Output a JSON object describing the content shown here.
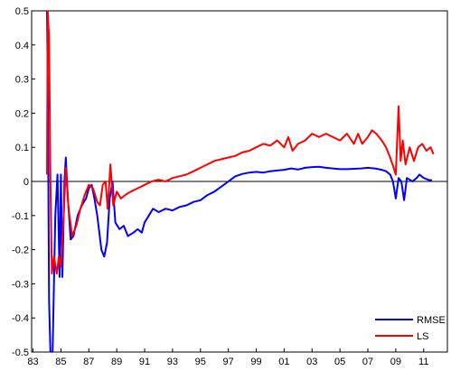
{
  "chart_data": {
    "type": "line",
    "title": "",
    "xlabel": "",
    "ylabel": "",
    "xlim": [
      1982.9,
      2012.7
    ],
    "ylim": [
      -0.5,
      0.5
    ],
    "x_ticks": [
      1983,
      1985,
      1987,
      1989,
      1991,
      1993,
      1995,
      1997,
      1999,
      2001,
      2003,
      2005,
      2007,
      2009,
      2011
    ],
    "x_tick_labels": [
      "83",
      "85",
      "87",
      "89",
      "91",
      "93",
      "95",
      "97",
      "99",
      "01",
      "03",
      "05",
      "07",
      "09",
      "11"
    ],
    "y_ticks": [
      -0.5,
      -0.4,
      -0.3,
      -0.2,
      -0.1,
      0,
      0.1,
      0.2,
      0.3,
      0.4,
      0.5
    ],
    "y_tick_labels": [
      "-0.5",
      "-0.4",
      "-0.3",
      "-0.2",
      "-0.1",
      "0",
      "0.1",
      "0.2",
      "0.3",
      "0.4",
      "0.5"
    ],
    "zero_line": true,
    "grid": false,
    "legend_position": "bottom-right",
    "series": [
      {
        "name": "RMSE",
        "color": "#0000ff",
        "points": [
          [
            1984.0,
            0.5
          ],
          [
            1984.05,
            0.3
          ],
          [
            1984.1,
            0.0
          ],
          [
            1984.15,
            -0.35
          ],
          [
            1984.25,
            -0.5
          ],
          [
            1984.4,
            -0.5
          ],
          [
            1984.6,
            -0.1
          ],
          [
            1984.75,
            0.02
          ],
          [
            1984.9,
            -0.28
          ],
          [
            1985.0,
            0.02
          ],
          [
            1985.1,
            -0.28
          ],
          [
            1985.25,
            0.0
          ],
          [
            1985.35,
            0.07
          ],
          [
            1985.5,
            -0.05
          ],
          [
            1985.7,
            -0.17
          ],
          [
            1985.9,
            -0.16
          ],
          [
            1986.2,
            -0.1
          ],
          [
            1986.5,
            -0.07
          ],
          [
            1986.8,
            -0.05
          ],
          [
            1987.0,
            -0.02
          ],
          [
            1987.2,
            -0.01
          ],
          [
            1987.4,
            -0.05
          ],
          [
            1987.6,
            -0.1
          ],
          [
            1987.9,
            -0.2
          ],
          [
            1988.1,
            -0.22
          ],
          [
            1988.3,
            -0.18
          ],
          [
            1988.5,
            -0.05
          ],
          [
            1988.7,
            0.0
          ],
          [
            1988.9,
            -0.12
          ],
          [
            1989.2,
            -0.14
          ],
          [
            1989.5,
            -0.13
          ],
          [
            1989.8,
            -0.16
          ],
          [
            1990.2,
            -0.15
          ],
          [
            1990.5,
            -0.14
          ],
          [
            1990.8,
            -0.15
          ],
          [
            1991.0,
            -0.12
          ],
          [
            1991.3,
            -0.1
          ],
          [
            1991.6,
            -0.08
          ],
          [
            1992.0,
            -0.09
          ],
          [
            1992.5,
            -0.08
          ],
          [
            1993.0,
            -0.085
          ],
          [
            1993.5,
            -0.075
          ],
          [
            1994.0,
            -0.07
          ],
          [
            1994.5,
            -0.06
          ],
          [
            1995.0,
            -0.055
          ],
          [
            1995.5,
            -0.04
          ],
          [
            1996.0,
            -0.03
          ],
          [
            1996.5,
            -0.015
          ],
          [
            1997.0,
            0.0
          ],
          [
            1997.5,
            0.015
          ],
          [
            1998.0,
            0.022
          ],
          [
            1998.5,
            0.026
          ],
          [
            1999.0,
            0.028
          ],
          [
            1999.5,
            0.026
          ],
          [
            2000.0,
            0.03
          ],
          [
            2000.5,
            0.032
          ],
          [
            2001.0,
            0.034
          ],
          [
            2001.5,
            0.038
          ],
          [
            2002.0,
            0.035
          ],
          [
            2002.5,
            0.04
          ],
          [
            2003.0,
            0.042
          ],
          [
            2003.5,
            0.043
          ],
          [
            2004.0,
            0.04
          ],
          [
            2004.5,
            0.038
          ],
          [
            2005.0,
            0.036
          ],
          [
            2005.5,
            0.036
          ],
          [
            2006.0,
            0.037
          ],
          [
            2006.5,
            0.038
          ],
          [
            2007.0,
            0.04
          ],
          [
            2007.5,
            0.038
          ],
          [
            2008.0,
            0.034
          ],
          [
            2008.3,
            0.03
          ],
          [
            2008.6,
            0.02
          ],
          [
            2008.8,
            0.0
          ],
          [
            2009.0,
            -0.05
          ],
          [
            2009.2,
            0.01
          ],
          [
            2009.4,
            0.0
          ],
          [
            2009.6,
            -0.055
          ],
          [
            2009.8,
            0.01
          ],
          [
            2010.2,
            0.0
          ],
          [
            2010.5,
            0.01
          ],
          [
            2010.7,
            0.02
          ],
          [
            2011.0,
            0.01
          ],
          [
            2011.3,
            0.005
          ],
          [
            2011.6,
            0.003
          ]
        ]
      },
      {
        "name": "LS",
        "color": "#ff0000",
        "points": [
          [
            1984.0,
            0.02
          ],
          [
            1984.05,
            0.5
          ],
          [
            1984.15,
            0.42
          ],
          [
            1984.25,
            0.0
          ],
          [
            1984.35,
            -0.27
          ],
          [
            1984.5,
            -0.22
          ],
          [
            1984.7,
            -0.27
          ],
          [
            1984.85,
            -0.22
          ],
          [
            1985.0,
            -0.25
          ],
          [
            1985.2,
            -0.1
          ],
          [
            1985.35,
            0.04
          ],
          [
            1985.55,
            -0.08
          ],
          [
            1985.8,
            -0.16
          ],
          [
            1986.1,
            -0.13
          ],
          [
            1986.4,
            -0.08
          ],
          [
            1986.7,
            -0.04
          ],
          [
            1987.0,
            -0.01
          ],
          [
            1987.3,
            -0.02
          ],
          [
            1987.6,
            -0.06
          ],
          [
            1987.8,
            -0.07
          ],
          [
            1988.0,
            -0.01
          ],
          [
            1988.2,
            0.0
          ],
          [
            1988.35,
            -0.08
          ],
          [
            1988.55,
            0.05
          ],
          [
            1988.75,
            -0.07
          ],
          [
            1989.0,
            -0.03
          ],
          [
            1989.3,
            -0.05
          ],
          [
            1989.6,
            -0.04
          ],
          [
            1990.0,
            -0.03
          ],
          [
            1990.5,
            -0.02
          ],
          [
            1991.0,
            -0.01
          ],
          [
            1991.5,
            0.0
          ],
          [
            1992.0,
            0.005
          ],
          [
            1992.5,
            0.0
          ],
          [
            1993.0,
            0.01
          ],
          [
            1993.5,
            0.015
          ],
          [
            1994.0,
            0.02
          ],
          [
            1994.5,
            0.03
          ],
          [
            1995.0,
            0.04
          ],
          [
            1995.5,
            0.05
          ],
          [
            1996.0,
            0.06
          ],
          [
            1996.5,
            0.065
          ],
          [
            1997.0,
            0.07
          ],
          [
            1997.5,
            0.075
          ],
          [
            1998.0,
            0.085
          ],
          [
            1998.5,
            0.09
          ],
          [
            1999.0,
            0.1
          ],
          [
            1999.5,
            0.11
          ],
          [
            2000.0,
            0.105
          ],
          [
            2000.5,
            0.12
          ],
          [
            2001.0,
            0.1
          ],
          [
            2001.3,
            0.13
          ],
          [
            2001.6,
            0.09
          ],
          [
            2002.0,
            0.11
          ],
          [
            2002.5,
            0.12
          ],
          [
            2003.0,
            0.14
          ],
          [
            2003.5,
            0.13
          ],
          [
            2004.0,
            0.14
          ],
          [
            2004.5,
            0.13
          ],
          [
            2005.0,
            0.12
          ],
          [
            2005.5,
            0.14
          ],
          [
            2006.0,
            0.11
          ],
          [
            2006.3,
            0.14
          ],
          [
            2006.6,
            0.11
          ],
          [
            2007.0,
            0.13
          ],
          [
            2007.3,
            0.15
          ],
          [
            2007.6,
            0.14
          ],
          [
            2008.0,
            0.12
          ],
          [
            2008.3,
            0.1
          ],
          [
            2008.6,
            0.07
          ],
          [
            2008.85,
            0.04
          ],
          [
            2009.0,
            0.02
          ],
          [
            2009.2,
            0.22
          ],
          [
            2009.35,
            0.06
          ],
          [
            2009.5,
            0.12
          ],
          [
            2009.7,
            0.05
          ],
          [
            2010.0,
            0.1
          ],
          [
            2010.3,
            0.06
          ],
          [
            2010.6,
            0.1
          ],
          [
            2010.9,
            0.11
          ],
          [
            2011.2,
            0.09
          ],
          [
            2011.5,
            0.1
          ],
          [
            2011.7,
            0.08
          ]
        ]
      }
    ]
  }
}
